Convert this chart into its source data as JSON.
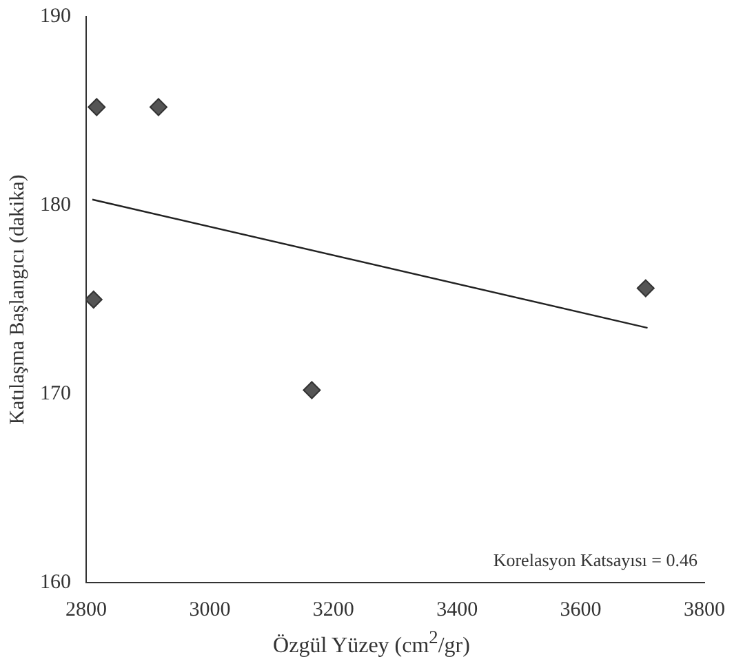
{
  "chart_data": {
    "type": "scatter",
    "xlabel": "Özgül Yüzey (cm$^{2}$/gr)",
    "ylabel": "Katılaşma Başlangıcı (dakika)",
    "xlim": [
      2800,
      3800
    ],
    "xticks": [
      2800,
      3000,
      3200,
      3400,
      3600,
      3800
    ],
    "ylim": [
      160,
      190
    ],
    "yticks": [
      160,
      170,
      180,
      190
    ],
    "grid": false,
    "legend": false,
    "series": [
      {
        "type": "scatter",
        "marker": "diamond",
        "color": "#555555",
        "x": [
          2812,
          2817,
          2917,
          3165,
          3705
        ],
        "values": [
          175.0,
          185.2,
          185.2,
          170.2,
          175.6
        ]
      },
      {
        "type": "line",
        "marker": "none",
        "color": "#222222",
        "x": [
          2810,
          3708
        ],
        "values": [
          180.3,
          173.5
        ]
      }
    ],
    "annotations": [
      "Korelasyon Katsayısı = 0.46"
    ]
  }
}
